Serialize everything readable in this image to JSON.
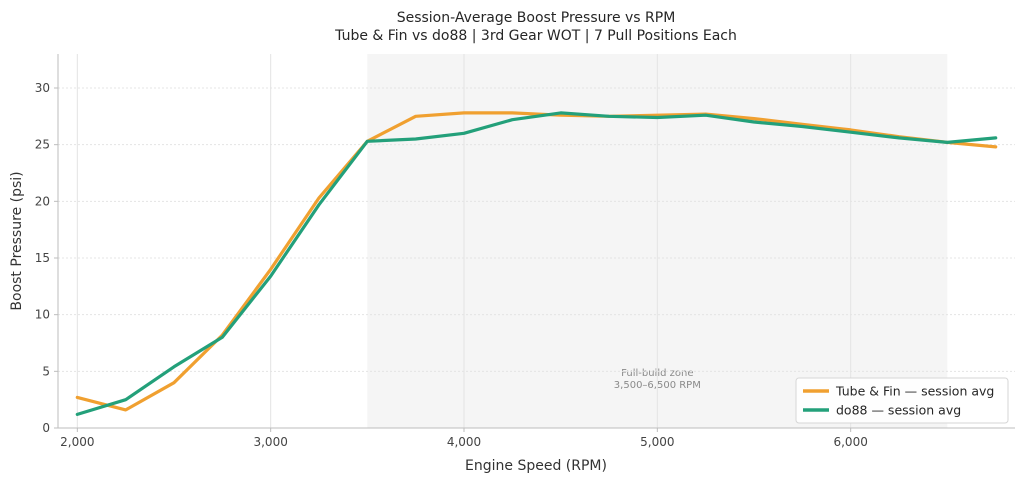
{
  "chart_data": {
    "type": "line",
    "title": "Session-Average Boost Pressure vs RPM",
    "subtitle": "Tube & Fin vs do88 | 3rd Gear WOT | 7 Pull Positions Each",
    "xlabel": "Engine Speed (RPM)",
    "ylabel": "Boost Pressure (psi)",
    "xlim": [
      1900,
      6850
    ],
    "ylim": [
      0,
      33
    ],
    "xticks": [
      2000,
      3000,
      4000,
      5000,
      6000
    ],
    "xtick_labels": [
      "2,000",
      "3,000",
      "4,000",
      "5,000",
      "6,000"
    ],
    "yticks": [
      0,
      5,
      10,
      15,
      20,
      25,
      30
    ],
    "ytick_labels": [
      "0",
      "5",
      "10",
      "15",
      "20",
      "25",
      "30"
    ],
    "grid": true,
    "legend_position": "bottom-right",
    "shaded_region": {
      "x_start": 3500,
      "x_end": 6500,
      "label_line1": "Full-build zone",
      "label_line2": "3,500–6,500 RPM"
    },
    "x": [
      2000,
      2250,
      2500,
      2750,
      3000,
      3250,
      3500,
      3750,
      4000,
      4250,
      4500,
      4750,
      5000,
      5250,
      5500,
      5750,
      6000,
      6250,
      6500,
      6750
    ],
    "series": [
      {
        "name": "Tube & Fin — session avg",
        "color": "#f0a030",
        "values": [
          2.7,
          1.6,
          4.0,
          8.2,
          14.0,
          20.3,
          25.3,
          27.5,
          27.8,
          27.8,
          27.6,
          27.5,
          27.6,
          27.7,
          27.3,
          26.8,
          26.3,
          25.7,
          25.2,
          24.8
        ]
      },
      {
        "name": "do88 — session avg",
        "color": "#23a07a",
        "values": [
          1.2,
          2.5,
          5.4,
          8.0,
          13.4,
          19.7,
          25.3,
          25.5,
          26.0,
          27.2,
          27.8,
          27.5,
          27.4,
          27.6,
          27.0,
          26.6,
          26.1,
          25.6,
          25.2,
          25.6
        ]
      }
    ]
  }
}
